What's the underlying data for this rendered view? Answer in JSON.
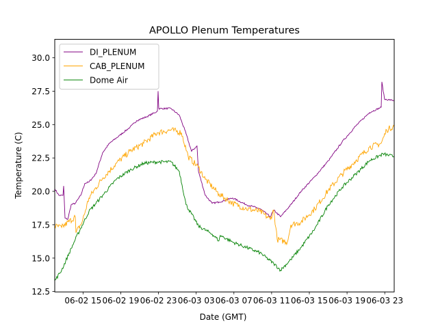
{
  "chart_data": {
    "type": "line",
    "title": "APOLLO Plenum Temperatures",
    "xlabel": "Date (GMT)",
    "ylabel": "Temperature (C)",
    "x_unit": "hours since 06-02 12:00 GMT",
    "xlim": [
      0,
      36
    ],
    "ylim": [
      12.47,
      31.38
    ],
    "grid": false,
    "legend_position": "top-left",
    "x_ticks": [
      {
        "x": 3,
        "label": "06-02 15"
      },
      {
        "x": 7,
        "label": "06-02 19"
      },
      {
        "x": 11,
        "label": "06-02 23"
      },
      {
        "x": 15,
        "label": "06-03 03"
      },
      {
        "x": 19,
        "label": "06-03 07"
      },
      {
        "x": 23,
        "label": "06-03 11"
      },
      {
        "x": 27,
        "label": "06-03 15"
      },
      {
        "x": 31,
        "label": "06-03 19"
      },
      {
        "x": 35,
        "label": "06-03 23"
      }
    ],
    "y_ticks": [
      {
        "y": 12.5,
        "label": "12.5"
      },
      {
        "y": 15.0,
        "label": "15.0"
      },
      {
        "y": 17.5,
        "label": "17.5"
      },
      {
        "y": 20.0,
        "label": "20.0"
      },
      {
        "y": 22.5,
        "label": "22.5"
      },
      {
        "y": 25.0,
        "label": "25.0"
      },
      {
        "y": 27.5,
        "label": "27.5"
      },
      {
        "y": 30.0,
        "label": "30.0"
      }
    ],
    "series": [
      {
        "name": "DI_PLENUM",
        "color": "#800080",
        "x": [
          0,
          0.44,
          0.87,
          0.94,
          1.09,
          1.38,
          1.74,
          2.18,
          2.76,
          3.19,
          3.63,
          4.35,
          5.08,
          5.81,
          6.9,
          7.98,
          8.71,
          9.8,
          10.89,
          10.96,
          11.03,
          12.34,
          13.21,
          13.79,
          14.51,
          15.09,
          15.24,
          15.97,
          16.69,
          17.42,
          18.87,
          20.32,
          21.77,
          22.86,
          23.22,
          23.95,
          25.04,
          26.12,
          27.58,
          29.03,
          30.48,
          31.93,
          33.38,
          34.62,
          34.69,
          34.98,
          36.0
        ],
        "values": [
          20.2,
          19.7,
          19.7,
          20.4,
          18.0,
          17.9,
          19.0,
          19.1,
          19.7,
          20.6,
          20.7,
          21.3,
          22.9,
          23.6,
          24.2,
          24.8,
          25.3,
          25.6,
          26.0,
          27.5,
          26.2,
          26.2,
          25.7,
          24.6,
          23.0,
          23.4,
          21.5,
          19.7,
          19.1,
          19.2,
          19.5,
          19.0,
          18.7,
          18.1,
          18.6,
          18.1,
          19.0,
          20.0,
          21.1,
          22.3,
          23.7,
          24.9,
          25.9,
          26.3,
          28.2,
          26.9,
          26.8
        ]
      },
      {
        "name": "CAB_PLENUM",
        "color": "#ffa500",
        "x": [
          0,
          0.73,
          2.18,
          2.25,
          2.9,
          3.63,
          5.08,
          6.53,
          7.98,
          9.43,
          10.89,
          12.34,
          13.43,
          14.15,
          15.24,
          15.97,
          17.42,
          18.87,
          20.32,
          21.77,
          22.86,
          23.22,
          23.59,
          24.67,
          25.04,
          26.12,
          27.58,
          29.03,
          30.48,
          31.93,
          33.38,
          34.62,
          35.2,
          36.0
        ],
        "values": [
          17.4,
          17.3,
          18.1,
          16.9,
          17.7,
          19.5,
          21.0,
          22.1,
          23.0,
          23.6,
          24.4,
          24.6,
          24.4,
          22.6,
          21.8,
          20.9,
          19.8,
          19.1,
          18.7,
          18.5,
          17.9,
          18.6,
          16.4,
          16.2,
          17.5,
          17.7,
          18.7,
          20.1,
          21.3,
          22.3,
          23.3,
          23.6,
          24.6,
          24.9
        ]
      },
      {
        "name": "Dome Air",
        "color": "#008000",
        "x": [
          0,
          0.73,
          2.18,
          3.63,
          5.08,
          6.53,
          7.98,
          9.43,
          10.89,
          12.34,
          13.21,
          13.93,
          15.24,
          16.69,
          17.42,
          17.56,
          18.87,
          20.32,
          21.77,
          23.22,
          23.95,
          25.04,
          26.12,
          27.58,
          29.03,
          30.48,
          31.93,
          33.38,
          34.83,
          36.0
        ],
        "values": [
          13.3,
          14.1,
          16.4,
          18.5,
          19.7,
          20.9,
          21.6,
          22.1,
          22.2,
          22.2,
          21.5,
          19.0,
          17.4,
          16.8,
          16.3,
          16.7,
          16.2,
          15.8,
          15.4,
          14.6,
          14.1,
          14.9,
          15.8,
          17.2,
          19.0,
          20.3,
          21.3,
          22.3,
          22.8,
          22.6
        ]
      }
    ]
  }
}
